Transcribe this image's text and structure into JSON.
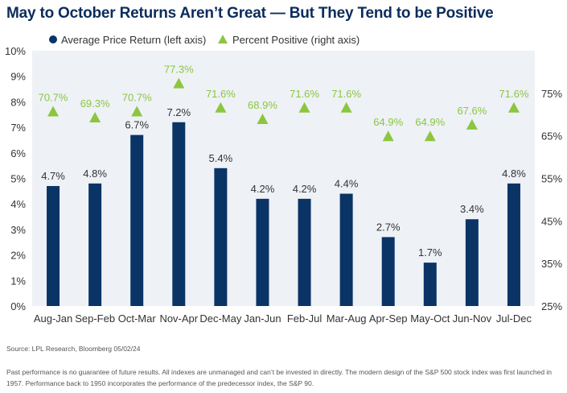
{
  "title": "May to October Returns Aren’t Great — But They Tend to be Positive",
  "colors": {
    "bar": "#0b3466",
    "point": "#8cc63f",
    "plot_bg": "#eef1f6",
    "title": "#0b2c5c"
  },
  "chart_data": {
    "type": "bar",
    "categories": [
      "Aug-Jan",
      "Sep-Feb",
      "Oct-Mar",
      "Nov-Apr",
      "Dec-May",
      "Jan-Jun",
      "Feb-Jul",
      "Mar-Aug",
      "Apr-Sep",
      "May-Oct",
      "Jun-Nov",
      "Jul-Dec"
    ],
    "series": [
      {
        "name": "Average Price Return (left axis)",
        "type": "bar",
        "axis": "left",
        "values": [
          4.7,
          4.8,
          6.7,
          7.2,
          5.4,
          4.2,
          4.2,
          4.4,
          2.7,
          1.7,
          3.4,
          4.8
        ],
        "labels": [
          "4.7%",
          "4.8%",
          "6.7%",
          "7.2%",
          "5.4%",
          "4.2%",
          "4.2%",
          "4.4%",
          "2.7%",
          "1.7%",
          "3.4%",
          "4.8%"
        ]
      },
      {
        "name": "Percent Positive (right axis)",
        "type": "scatter",
        "axis": "right",
        "marker": "triangle",
        "values": [
          70.7,
          69.3,
          70.7,
          77.3,
          71.6,
          68.9,
          71.6,
          71.6,
          64.9,
          64.9,
          67.6,
          71.6
        ],
        "labels": [
          "70.7%",
          "69.3%",
          "70.7%",
          "77.3%",
          "71.6%",
          "68.9%",
          "71.6%",
          "71.6%",
          "64.9%",
          "64.9%",
          "67.6%",
          "71.6%"
        ]
      }
    ],
    "left_axis": {
      "ylim": [
        0,
        10
      ],
      "ticks": [
        0,
        1,
        2,
        3,
        4,
        5,
        6,
        7,
        8,
        9,
        10
      ],
      "tick_labels": [
        "0%",
        "1%",
        "2%",
        "3%",
        "4%",
        "5%",
        "6%",
        "7%",
        "8%",
        "9%",
        "10%"
      ]
    },
    "right_axis": {
      "ylim": [
        25,
        85
      ],
      "ticks": [
        25,
        35,
        45,
        55,
        65,
        75
      ],
      "tick_labels": [
        "25%",
        "35%",
        "45%",
        "55%",
        "65%",
        "75%"
      ]
    },
    "legend_position": "top-left",
    "grid": false
  },
  "source": "Source: LPL Research, Bloomberg 05/02/24",
  "disclaimer": "Past performance is no guarantee of future results. All indexes are unmanaged and can’t be invested in directly. The modern design of the S&P 500 stock index was first launched in 1957. Performance back to 1950 incorporates the performance of the predecessor index, the S&P 90."
}
